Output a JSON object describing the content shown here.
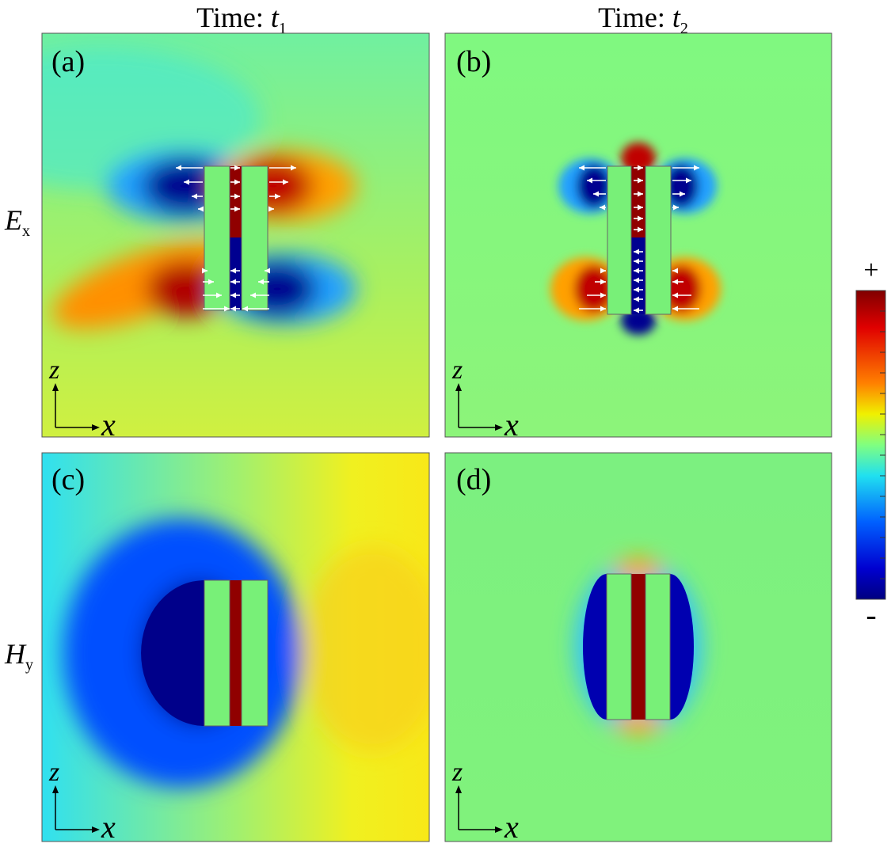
{
  "columns": [
    {
      "label": "Time:",
      "var": "t",
      "sub": "1"
    },
    {
      "label": "Time:",
      "var": "t",
      "sub": "2"
    }
  ],
  "rows": [
    {
      "var": "E",
      "sub": "x"
    },
    {
      "var": "H",
      "sub": "y"
    }
  ],
  "panels": [
    {
      "label": "(a)",
      "axes": {
        "vertical": "z",
        "horizontal": "x"
      }
    },
    {
      "label": "(b)",
      "axes": {
        "vertical": "z",
        "horizontal": "x"
      }
    },
    {
      "label": "(c)",
      "axes": {
        "vertical": "z",
        "horizontal": "x"
      }
    },
    {
      "label": "(d)",
      "axes": {
        "vertical": "z",
        "horizontal": "x"
      }
    }
  ],
  "colorbar": {
    "max": "+",
    "min": "-"
  }
}
